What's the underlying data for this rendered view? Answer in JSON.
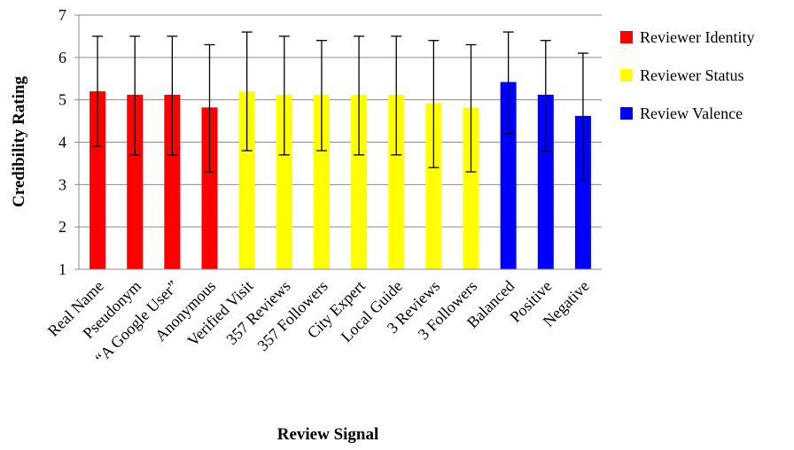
{
  "chart_data": {
    "type": "bar",
    "xlabel": "Review Signal",
    "ylabel": "Credibility  Rating",
    "ylim": [
      1,
      7
    ],
    "yticks": [
      1,
      2,
      3,
      4,
      5,
      6,
      7
    ],
    "grid": true,
    "legend_position": "right",
    "categories": [
      "Real Name",
      "Pseudonym",
      "“A Google User”",
      "Anonymous",
      "Verified Visit",
      "357 Reviews",
      "357 Followers",
      "City Expert",
      "Local Guide",
      "3 Reviews",
      "3 Followers",
      "Balanced",
      "Positive",
      "Negative"
    ],
    "values": [
      5.2,
      5.12,
      5.12,
      4.82,
      5.2,
      5.12,
      5.12,
      5.12,
      5.12,
      4.92,
      4.82,
      5.42,
      5.12,
      4.62
    ],
    "error_low": [
      3.9,
      3.7,
      3.7,
      3.3,
      3.8,
      3.7,
      3.8,
      3.7,
      3.7,
      3.4,
      3.3,
      4.2,
      3.8,
      3.1
    ],
    "error_high": [
      6.5,
      6.5,
      6.5,
      6.3,
      6.6,
      6.5,
      6.4,
      6.5,
      6.5,
      6.4,
      6.3,
      6.6,
      6.4,
      6.1
    ],
    "groups": [
      0,
      0,
      0,
      0,
      1,
      1,
      1,
      1,
      1,
      1,
      1,
      2,
      2,
      2
    ],
    "legend": [
      {
        "name": "Reviewer Identity",
        "color": "#ff0000"
      },
      {
        "name": "Reviewer Status",
        "color": "#ffff00"
      },
      {
        "name": "Review Valence",
        "color": "#0000ff"
      }
    ]
  }
}
